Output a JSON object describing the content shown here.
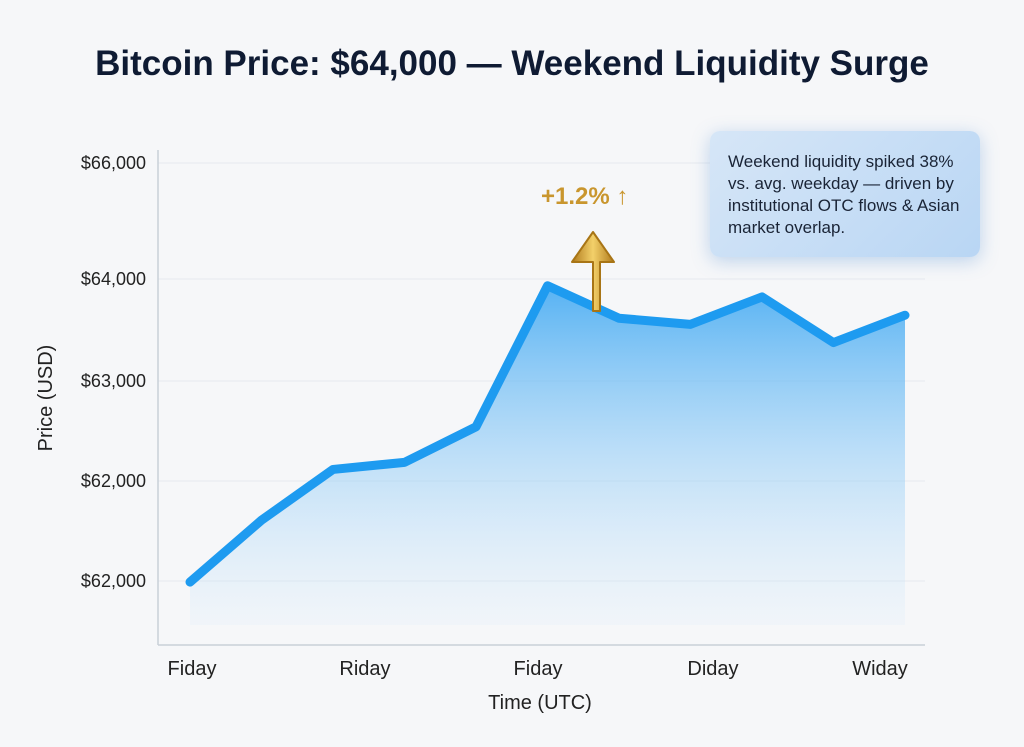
{
  "chart_data": {
    "type": "area",
    "title": "Bitcoin Price: $64,000 — Weekend Liquidity Surge",
    "xlabel": "Time (UTC)",
    "ylabel": "Price (USD)",
    "x_tick_labels": [
      "Fiday",
      "Riday",
      "Fiday",
      "Diday",
      "Widay"
    ],
    "y_tick_labels": [
      "$66,000",
      "$64,000",
      "$63,000",
      "$62,000",
      "$62,000"
    ],
    "ylim": [
      60400,
      65150
    ],
    "values": [
      61020,
      61630,
      62130,
      62200,
      62550,
      63940,
      63620,
      63560,
      63830,
      63380,
      63650
    ],
    "grid": true,
    "line_color": "#1e9bf0",
    "annotation": {
      "label": "+1.2%",
      "arrow": "up-arrow-icon",
      "color": "#c9962e",
      "point_index": 5
    },
    "callout": "Weekend liquidity spiked 38% vs. avg. weekday — driven by institutional OTC flows & Asian market overlap."
  }
}
